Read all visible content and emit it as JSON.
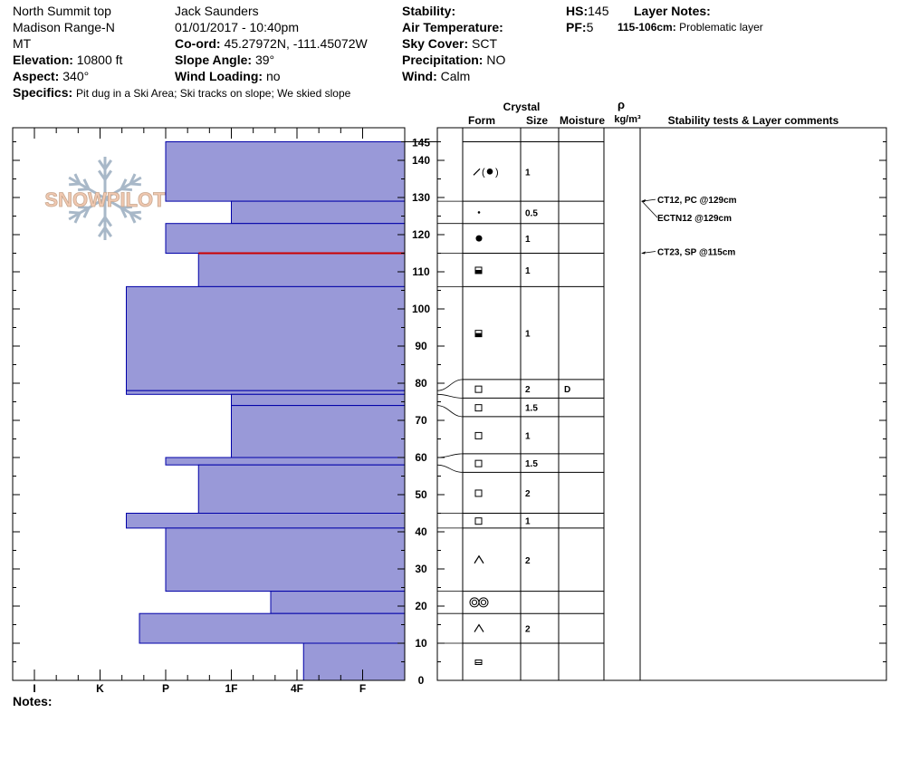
{
  "header": {
    "location": "North Summit top",
    "range": "Madison Range-N",
    "state": "MT",
    "elevation_label": "Elevation:",
    "elevation_value": "10800 ft",
    "aspect_label": "Aspect:",
    "aspect_value": "340°",
    "specifics_label": "Specifics:",
    "specifics_value": "Pit dug in a Ski Area; Ski tracks on slope; We skied slope",
    "observer": "Jack Saunders",
    "datetime": "01/01/2017 - 10:40pm",
    "coord_label": "Co-ord:",
    "coord_value": "45.27972N, -111.45072W",
    "slope_label": "Slope Angle:",
    "slope_value": "39°",
    "wind_loading_label": "Wind Loading:",
    "wind_loading_value": "no",
    "stability_label": "Stability:",
    "stability_value": "",
    "air_temp_label": "Air Temperature:",
    "air_temp_value": "",
    "sky_label": "Sky Cover:",
    "sky_value": "SCT",
    "precip_label": "Precipitation:",
    "precip_value": "NO",
    "wind_label": "Wind:",
    "wind_value": "Calm",
    "hs_label": "HS:",
    "hs_value": "145",
    "pf_label": "PF:",
    "pf_value": "5",
    "layer_notes_label": "Layer Notes:",
    "layer_notes_range": "115-106cm:",
    "layer_notes_text": "Problematic layer",
    "notes_label": "Notes:"
  },
  "logo_text": "SNOWPILOT",
  "columns": {
    "crystal": "Crystal",
    "form": "Form",
    "size": "Size",
    "moisture": "Moisture",
    "rho": "ρ",
    "density_unit": "kg/m³",
    "stability": "Stability tests & Layer comments"
  },
  "colors": {
    "bar_fill": "#9999d8",
    "bar_stroke": "#0000a8",
    "problem_line": "#cc0000",
    "logo": "#a8b8c8",
    "logo_text": "#f0c8b0"
  },
  "chart_data": {
    "type": "snow-profile",
    "y_axis": {
      "range": [
        0,
        145
      ],
      "ticks": [
        0,
        10,
        20,
        30,
        40,
        50,
        60,
        70,
        80,
        90,
        100,
        110,
        120,
        130,
        140,
        145
      ]
    },
    "hardness_scale": [
      "I",
      "K",
      "P",
      "1F",
      "4F",
      "F"
    ],
    "hardness_layers": [
      {
        "top": 145,
        "bottom": 129,
        "hardness": 2
      },
      {
        "top": 129,
        "bottom": 123,
        "hardness": 3
      },
      {
        "top": 123,
        "bottom": 115,
        "hardness": 2
      },
      {
        "top": 115,
        "bottom": 106,
        "hardness": 2.5
      },
      {
        "top": 106,
        "bottom": 78,
        "hardness": 1.4
      },
      {
        "top": 78,
        "bottom": 77,
        "hardness": 1.4
      },
      {
        "top": 77,
        "bottom": 74,
        "hardness": 3
      },
      {
        "top": 74,
        "bottom": 60,
        "hardness": 3
      },
      {
        "top": 60,
        "bottom": 58,
        "hardness": 2
      },
      {
        "top": 58,
        "bottom": 45,
        "hardness": 2.5
      },
      {
        "top": 45,
        "bottom": 41,
        "hardness": 1.4
      },
      {
        "top": 41,
        "bottom": 24,
        "hardness": 2
      },
      {
        "top": 24,
        "bottom": 18,
        "hardness": 3.6
      },
      {
        "top": 18,
        "bottom": 10,
        "hardness": 1.6
      },
      {
        "top": 10,
        "bottom": 0,
        "hardness": 4.1
      }
    ],
    "problem_layer_height": 115,
    "crystal_layers": [
      {
        "top": 145,
        "bottom": 129,
        "form": "PP/DF",
        "size": "1",
        "moisture": ""
      },
      {
        "top": 129,
        "bottom": 123,
        "form": "DF-small",
        "size": "0.5",
        "moisture": ""
      },
      {
        "top": 123,
        "bottom": 115,
        "form": "RG",
        "size": "1",
        "moisture": ""
      },
      {
        "top": 115,
        "bottom": 106,
        "form": "FCxr",
        "size": "1",
        "moisture": ""
      },
      {
        "top": 106,
        "bottom": 81,
        "form": "FCxr",
        "size": "1",
        "moisture": ""
      },
      {
        "top": 81,
        "bottom": 76,
        "form": "FC",
        "size": "2",
        "moisture": "D"
      },
      {
        "top": 76,
        "bottom": 71,
        "form": "FC",
        "size": "1.5",
        "moisture": ""
      },
      {
        "top": 71,
        "bottom": 61,
        "form": "FC",
        "size": "1",
        "moisture": ""
      },
      {
        "top": 61,
        "bottom": 56,
        "form": "FC",
        "size": "1.5",
        "moisture": ""
      },
      {
        "top": 56,
        "bottom": 45,
        "form": "FC",
        "size": "2",
        "moisture": ""
      },
      {
        "top": 45,
        "bottom": 41,
        "form": "FC",
        "size": "1",
        "moisture": ""
      },
      {
        "top": 41,
        "bottom": 24,
        "form": "DH",
        "size": "2",
        "moisture": ""
      },
      {
        "top": 24,
        "bottom": 18,
        "form": "MF",
        "size": "",
        "moisture": ""
      },
      {
        "top": 18,
        "bottom": 10,
        "form": "DH",
        "size": "2",
        "moisture": ""
      },
      {
        "top": 10,
        "bottom": 0,
        "form": "FCso",
        "size": "",
        "moisture": ""
      }
    ],
    "stability_tests": [
      {
        "label": "CT12, PC @129cm",
        "height": 129
      },
      {
        "label": "ECTN12 @129cm",
        "height": 129
      },
      {
        "label": "CT23, SP @115cm",
        "height": 115
      }
    ]
  }
}
